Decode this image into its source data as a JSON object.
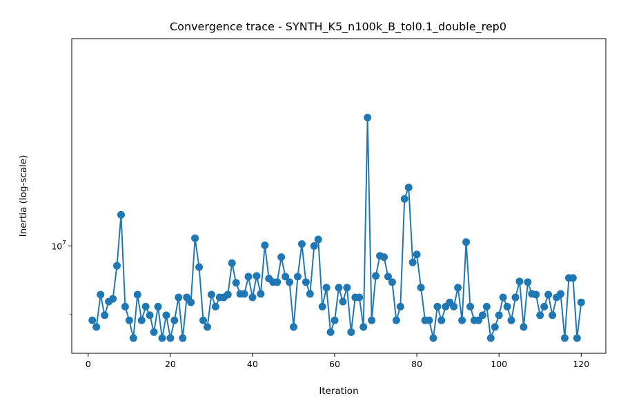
{
  "chart_data": {
    "type": "line",
    "title": "Convergence trace - SYNTH_K5_n100k_B_tol0.1_double_rep0",
    "xlabel": "Iteration",
    "ylabel": "Inertia (log-scale)",
    "y_scale": "log",
    "xlim": [
      -4,
      126
    ],
    "ylim": [
      8480000,
      13750000
    ],
    "x_ticks": [
      0,
      20,
      40,
      60,
      80,
      100,
      120
    ],
    "x_tick_labels": [
      "0",
      "20",
      "40",
      "60",
      "80",
      "100",
      "120"
    ],
    "y_major_ticks": [
      10000000
    ],
    "y_tick_base": "10",
    "y_tick_exp": "7",
    "y_minor_ticks": [
      9000000,
      20000000
    ],
    "grid": false,
    "legend": "none",
    "color": "#1f77b4",
    "marker": "circle",
    "series": [
      {
        "x": [
          1,
          2,
          3,
          4,
          5,
          6,
          7,
          8,
          9,
          10,
          11,
          12,
          13,
          14,
          15,
          16,
          17,
          18,
          19,
          20,
          21,
          22,
          23,
          24,
          25,
          26,
          27,
          28,
          29,
          30,
          31,
          32,
          33,
          34,
          35,
          36,
          37,
          38,
          39,
          40,
          41,
          42,
          43,
          44,
          45,
          46,
          47,
          48,
          49,
          50,
          51,
          52,
          53,
          54,
          55,
          56,
          57,
          58,
          59,
          60,
          61,
          62,
          63,
          64,
          65,
          66,
          67,
          68,
          69,
          70,
          71,
          72,
          73,
          74,
          75,
          76,
          77,
          78,
          79,
          80,
          81,
          82,
          83,
          84,
          85,
          86,
          87,
          88,
          89,
          90,
          91,
          92,
          93,
          94,
          95,
          96,
          97,
          98,
          99,
          100,
          101,
          102,
          103,
          104,
          105,
          106,
          107,
          108,
          109,
          110,
          111,
          112,
          113,
          114,
          115,
          116,
          117,
          118,
          119,
          120
        ],
        "y": [
          8920000,
          8830000,
          9280000,
          8990000,
          9180000,
          9220000,
          9700000,
          10490000,
          9110000,
          8920000,
          8680000,
          9280000,
          8920000,
          9110000,
          8990000,
          8760000,
          9110000,
          8680000,
          8990000,
          8680000,
          8920000,
          9240000,
          8680000,
          9240000,
          9170000,
          10120000,
          9680000,
          8920000,
          8830000,
          9280000,
          9110000,
          9240000,
          9240000,
          9280000,
          9740000,
          9450000,
          9290000,
          9290000,
          9540000,
          9240000,
          9550000,
          9290000,
          10010000,
          9510000,
          9460000,
          9460000,
          9830000,
          9540000,
          9460000,
          8830000,
          9540000,
          10030000,
          9460000,
          9290000,
          10000000,
          10100000,
          9110000,
          9380000,
          8760000,
          8920000,
          9380000,
          9180000,
          9380000,
          8760000,
          9240000,
          9240000,
          8830000,
          12180000,
          8920000,
          9550000,
          9850000,
          9830000,
          9540000,
          9460000,
          8920000,
          9110000,
          10750000,
          10940000,
          9750000,
          9870000,
          9380000,
          8920000,
          8920000,
          8680000,
          9110000,
          8920000,
          9110000,
          9170000,
          9110000,
          9380000,
          8920000,
          10060000,
          9110000,
          8920000,
          8920000,
          8990000,
          9110000,
          8680000,
          8830000,
          8990000,
          9240000,
          9110000,
          8920000,
          9240000,
          9470000,
          8830000,
          9460000,
          9290000,
          9280000,
          8990000,
          9110000,
          9280000,
          8990000,
          9240000,
          9290000,
          8680000,
          9520000,
          9520000,
          8680000,
          9170000
        ]
      }
    ]
  }
}
